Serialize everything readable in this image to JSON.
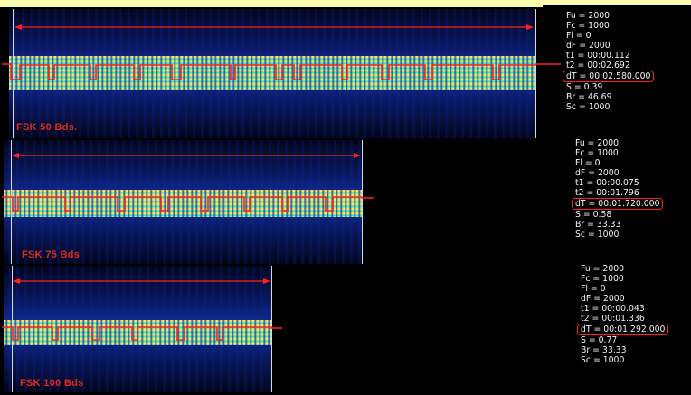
{
  "colors": {
    "background": "#fdfbb0",
    "panel": "#000000",
    "marker": "#ff2020",
    "caption": "#e02a1a"
  },
  "panels": [
    {
      "caption": "FSK 50 Bds.",
      "measurements": [
        "Fu = 2000",
        "Fc = 1000",
        "Fl = 0",
        "dF = 2000",
        "t1 = 00:00.112",
        "t2 = 00:02.692",
        "dT = 00:02.580.000",
        "S = 0.39",
        "Br = 46.69",
        "Sc = 1000"
      ],
      "highlight_index": 6
    },
    {
      "caption": "FSK 75 Bds",
      "measurements": [
        "Fu = 2000",
        "Fc = 1000",
        "Fl = 0",
        "dF = 2000",
        "t1 = 00:00.075",
        "t2 = 00:01.796",
        "dT = 00:01.720.000",
        "S = 0.58",
        "Br = 33.33",
        "Sc = 1000"
      ],
      "highlight_index": 6
    },
    {
      "caption": "FSK 100 Bds",
      "measurements": [
        "Fu = 2000",
        "Fc = 1000",
        "Fl = 0",
        "dF = 2000",
        "t1 = 00:00.043",
        "t2 = 00:01.336",
        "dT = 00:01.292.000",
        "S = 0.77",
        "Br = 33.33",
        "Sc = 1000"
      ],
      "highlight_index": 6
    }
  ]
}
